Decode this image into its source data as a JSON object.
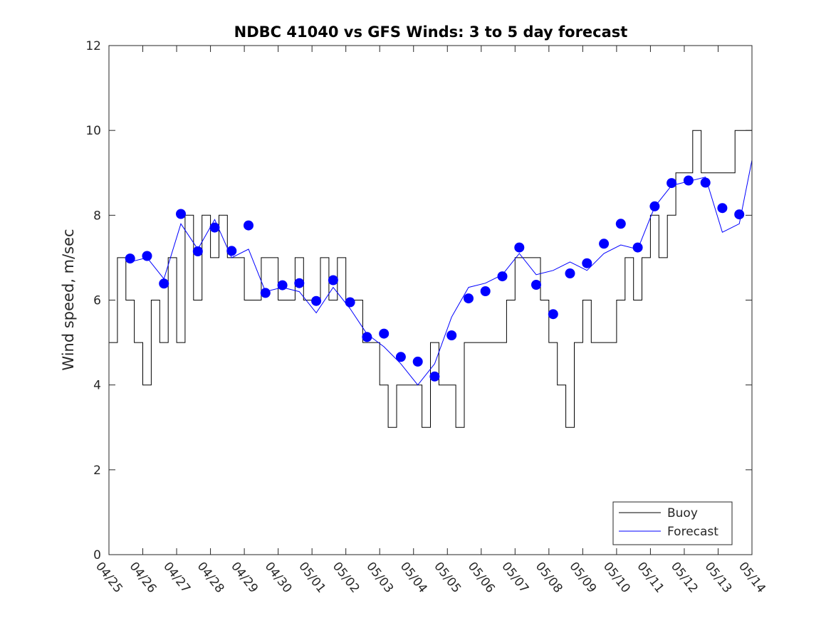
{
  "chart_data": {
    "type": "line",
    "title": "NDBC 41040 vs GFS Winds: 3 to 5 day forecast",
    "ylabel": "Wind speed, m/sec",
    "xlabel": "",
    "ylim": [
      0,
      12
    ],
    "yticks": [
      0,
      2,
      4,
      6,
      8,
      10,
      12
    ],
    "xlim_days": [
      0,
      19
    ],
    "xtick_labels": [
      "04/25",
      "04/26",
      "04/27",
      "04/28",
      "04/29",
      "04/30",
      "05/01",
      "05/02",
      "05/03",
      "05/04",
      "05/05",
      "05/06",
      "05/07",
      "05/08",
      "05/09",
      "05/10",
      "05/11",
      "05/12",
      "05/13",
      "05/14"
    ],
    "legend": {
      "position": "bottom-right",
      "entries": [
        "Buoy",
        "Forecast"
      ]
    },
    "colors": {
      "buoy": "#000000",
      "forecast": "#0000ff",
      "marker": "#0000ff"
    },
    "markers": {
      "name": "",
      "x_date": [
        "04/25 15:00",
        "04/26 03:00",
        "04/26 15:00",
        "04/27 03:00",
        "04/27 15:00",
        "04/28 03:00",
        "04/28 15:00",
        "04/29 03:00",
        "04/29 15:00",
        "04/30 03:00",
        "04/30 15:00",
        "05/01 03:00",
        "05/01 15:00",
        "05/02 03:00",
        "05/02 15:00",
        "05/03 03:00",
        "05/03 15:00",
        "05/04 03:00",
        "05/04 15:00",
        "05/05 03:00",
        "05/05 15:00",
        "05/06 03:00",
        "05/06 15:00",
        "05/07 03:00",
        "05/07 15:00",
        "05/08 03:00",
        "05/08 15:00",
        "05/09 03:00",
        "05/09 15:00",
        "05/10 03:00",
        "05/10 15:00",
        "05/11 03:00",
        "05/11 15:00",
        "05/12 03:00",
        "05/12 15:00",
        "05/13 03:00",
        "05/13 15:00"
      ],
      "y": [
        6.98,
        7.04,
        6.39,
        8.03,
        7.15,
        7.71,
        7.16,
        7.76,
        6.17,
        6.35,
        6.4,
        5.98,
        6.47,
        5.95,
        5.13,
        5.21,
        4.66,
        4.55,
        4.2,
        5.17,
        6.04,
        6.21,
        6.56,
        7.24,
        6.36,
        5.67,
        6.63,
        6.87,
        7.33,
        7.8,
        7.24,
        8.21,
        8.76,
        8.82,
        8.77,
        8.17,
        8.02
      ]
    },
    "buoy": {
      "name": "Buoy",
      "x_date": [
        "04/25 00:00",
        "04/25 06:00",
        "04/25 12:00",
        "04/25 18:00",
        "04/26 00:00",
        "04/26 06:00",
        "04/26 12:00",
        "04/26 18:00",
        "04/27 00:00",
        "04/27 06:00",
        "04/27 12:00",
        "04/27 18:00",
        "04/28 00:00",
        "04/28 06:00",
        "04/28 12:00",
        "04/28 18:00",
        "04/29 00:00",
        "04/29 06:00",
        "04/29 12:00",
        "04/29 18:00",
        "04/30 00:00",
        "04/30 06:00",
        "04/30 12:00",
        "04/30 18:00",
        "05/01 00:00",
        "05/01 06:00",
        "05/01 12:00",
        "05/01 18:00",
        "05/02 00:00",
        "05/02 06:00",
        "05/02 12:00",
        "05/02 18:00",
        "05/03 00:00",
        "05/03 06:00",
        "05/03 12:00",
        "05/03 18:00",
        "05/04 00:00",
        "05/04 06:00",
        "05/04 12:00",
        "05/04 18:00",
        "05/05 00:00",
        "05/05 06:00",
        "05/05 12:00",
        "05/05 18:00",
        "05/06 00:00",
        "05/06 06:00",
        "05/06 12:00",
        "05/06 18:00",
        "05/07 00:00",
        "05/07 06:00",
        "05/07 12:00",
        "05/07 18:00",
        "05/08 00:00",
        "05/08 06:00",
        "05/08 12:00",
        "05/08 18:00",
        "05/09 00:00",
        "05/09 06:00",
        "05/09 12:00",
        "05/09 18:00",
        "05/10 00:00",
        "05/10 06:00",
        "05/10 12:00",
        "05/10 18:00",
        "05/11 00:00",
        "05/11 06:00",
        "05/11 12:00",
        "05/11 18:00",
        "05/12 00:00",
        "05/12 06:00",
        "05/12 12:00",
        "05/12 18:00",
        "05/13 00:00",
        "05/13 06:00",
        "05/13 12:00",
        "05/13 18:00"
      ],
      "y": [
        5,
        7,
        6,
        5,
        4,
        6,
        5,
        7,
        5,
        8,
        6,
        8,
        7,
        8,
        7,
        7,
        6,
        6,
        7,
        7,
        6,
        6,
        7,
        6,
        6,
        7,
        6,
        7,
        6,
        6,
        5,
        5,
        4,
        3,
        4,
        4,
        4,
        3,
        5,
        4,
        4,
        3,
        5,
        5,
        5,
        5,
        5,
        6,
        7,
        7,
        7,
        6,
        5,
        4,
        3,
        5,
        6,
        5,
        5,
        5,
        6,
        7,
        6,
        7,
        8,
        7,
        8,
        9,
        9,
        10,
        9,
        9,
        9,
        9,
        10,
        10
      ]
    },
    "forecast": {
      "name": "Forecast",
      "x_date": [
        "04/25 15:00",
        "04/26 03:00",
        "04/26 15:00",
        "04/27 03:00",
        "04/27 15:00",
        "04/28 03:00",
        "04/28 15:00",
        "04/29 03:00",
        "04/29 15:00",
        "04/30 03:00",
        "04/30 15:00",
        "05/01 03:00",
        "05/01 15:00",
        "05/02 03:00",
        "05/02 15:00",
        "05/03 03:00",
        "05/03 15:00",
        "05/04 03:00",
        "05/04 15:00",
        "05/05 03:00",
        "05/05 15:00",
        "05/06 03:00",
        "05/06 15:00",
        "05/07 03:00",
        "05/07 15:00",
        "05/08 03:00",
        "05/08 15:00",
        "05/09 03:00",
        "05/09 15:00",
        "05/10 03:00",
        "05/10 15:00",
        "05/11 03:00",
        "05/11 15:00",
        "05/12 03:00",
        "05/12 15:00",
        "05/13 03:00",
        "05/13 15:00",
        "05/14 00:00"
      ],
      "y": [
        6.9,
        7.0,
        6.5,
        7.8,
        7.2,
        7.9,
        7.0,
        7.2,
        6.2,
        6.3,
        6.2,
        5.7,
        6.3,
        5.8,
        5.2,
        4.9,
        4.5,
        4.0,
        4.5,
        5.6,
        6.3,
        6.4,
        6.6,
        7.1,
        6.6,
        6.7,
        6.9,
        6.7,
        7.1,
        7.3,
        7.2,
        8.2,
        8.7,
        8.8,
        8.9,
        7.6,
        7.8,
        9.3
      ]
    }
  }
}
